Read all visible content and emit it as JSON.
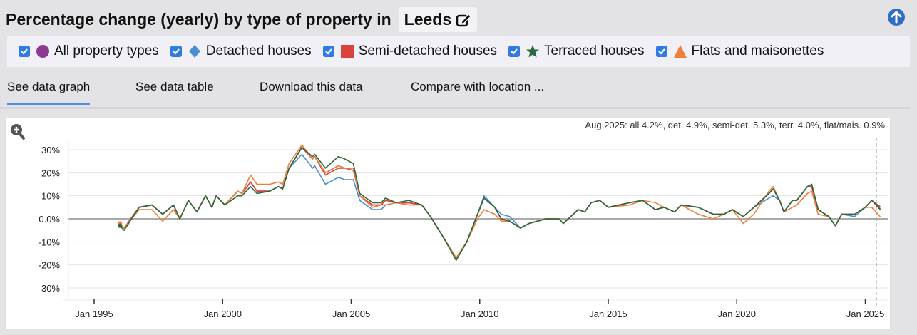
{
  "header": {
    "title": "Percentage change (yearly) by type of property in",
    "location": "Leeds",
    "edit_icon": "edit-icon",
    "scroll_top_icon": "arrow-up-circle-icon"
  },
  "legend": [
    {
      "label": "All property types",
      "color": "#8b3a8f",
      "marker": "circle",
      "checked": true
    },
    {
      "label": "Detached houses",
      "color": "#4a8fcf",
      "marker": "diamond",
      "checked": true
    },
    {
      "label": "Semi-detached houses",
      "color": "#d9433b",
      "marker": "square",
      "checked": true
    },
    {
      "label": "Terraced houses",
      "color": "#2c6a3c",
      "marker": "star",
      "checked": true
    },
    {
      "label": "Flats and maisonettes",
      "color": "#ef7f3d",
      "marker": "triangle",
      "checked": true
    }
  ],
  "tabs": [
    {
      "label": "See data graph",
      "active": true
    },
    {
      "label": "See data table"
    },
    {
      "label": "Download this data"
    },
    {
      "label": "Compare with location ..."
    }
  ],
  "chart_data": {
    "type": "line",
    "annotation": "Aug 2025: all 4.2%, det. 4.9%, semi-det. 5.3%, terr. 4.0%, flat/mais. 0.9%",
    "zoom_icon": "zoom-in-icon",
    "ylim": [
      -35,
      35
    ],
    "yticks": [
      "30%",
      "20%",
      "10%",
      "0.0%",
      "-10%",
      "-20%",
      "-30%"
    ],
    "xticks": [
      "Jan 1995",
      "Jan 2000",
      "Jan 2005",
      "Jan 2010",
      "Jan 2015",
      "Jan 2020",
      "Jan 2025"
    ],
    "grid": true,
    "x": [
      "1996-01",
      "1996-03",
      "1996-10",
      "1997-04",
      "1997-09",
      "1998-02",
      "1998-05",
      "1998-09",
      "1999-01",
      "1999-05",
      "1999-08",
      "1999-10",
      "2000-02",
      "2000-08",
      "2000-10",
      "2001-02",
      "2001-05",
      "2001-11",
      "2002-03",
      "2002-05",
      "2002-08",
      "2003-02",
      "2003-07",
      "2003-08",
      "2004-01",
      "2004-07",
      "2004-10",
      "2005-02",
      "2005-05",
      "2005-11",
      "2006-03",
      "2006-05",
      "2006-10",
      "2007-04",
      "2007-10",
      "2008-02",
      "2008-08",
      "2009-02",
      "2009-07",
      "2009-12",
      "2010-03",
      "2010-08",
      "2010-11",
      "2011-03",
      "2011-08",
      "2011-12",
      "2012-04",
      "2012-08",
      "2013-02",
      "2013-04",
      "2013-11",
      "2014-02",
      "2014-05",
      "2014-09",
      "2015-01",
      "2015-11",
      "2016-05",
      "2016-11",
      "2017-03",
      "2017-08",
      "2017-11",
      "2018-07",
      "2019-02",
      "2019-07",
      "2019-11",
      "2020-04",
      "2020-09",
      "2021-04",
      "2021-06",
      "2021-09",
      "2021-11",
      "2022-03",
      "2022-05",
      "2022-10",
      "2022-12",
      "2023-03",
      "2023-08",
      "2023-11",
      "2024-02",
      "2024-08",
      "2025-01",
      "2025-04",
      "2025-08"
    ],
    "series": [
      {
        "name": "All property types",
        "values": [
          -2,
          -4,
          5,
          6,
          2,
          6,
          0,
          8,
          3,
          10,
          5,
          10,
          6,
          12,
          11,
          16,
          12,
          12,
          14,
          13,
          22,
          31,
          26,
          27,
          20,
          23,
          22,
          22,
          10,
          6,
          6,
          8,
          7,
          7,
          6,
          1,
          -8,
          -17,
          -10,
          2,
          9,
          5,
          0,
          -1,
          -4,
          -2,
          -1,
          0,
          0,
          -2,
          4,
          3,
          7,
          8,
          5,
          7,
          8,
          4,
          5,
          3,
          6,
          5,
          2,
          2,
          4,
          1,
          5,
          11,
          13,
          8,
          3,
          8,
          8,
          14,
          14,
          4,
          1,
          -3,
          2,
          2,
          5,
          8,
          4.2
        ]
      },
      {
        "name": "Detached houses",
        "values": [
          -2,
          -4,
          5,
          6,
          2,
          6,
          0,
          8,
          3,
          10,
          5,
          10,
          6,
          12,
          11,
          16,
          12,
          12,
          14,
          13,
          22,
          28,
          22,
          23,
          15,
          18,
          17,
          17,
          8,
          4,
          4,
          6,
          7,
          7,
          6,
          1,
          -8,
          -17,
          -10,
          2,
          10,
          5,
          2,
          1,
          -4,
          -2,
          -1,
          0,
          0,
          -2,
          4,
          3,
          7,
          8,
          5,
          7,
          8,
          4,
          5,
          3,
          6,
          5,
          2,
          2,
          4,
          1,
          5,
          9,
          10,
          8,
          3,
          8,
          8,
          14,
          14,
          4,
          1,
          -3,
          2,
          1,
          5,
          8,
          4.9
        ]
      },
      {
        "name": "Semi-detached houses",
        "values": [
          -2,
          -4,
          5,
          6,
          2,
          6,
          0,
          8,
          3,
          10,
          5,
          10,
          6,
          12,
          11,
          16,
          12,
          12,
          14,
          13,
          22,
          31,
          26,
          27,
          19,
          22,
          22,
          21,
          10,
          6,
          6,
          8,
          7,
          7,
          6,
          1,
          -8,
          -17,
          -10,
          2,
          9,
          5,
          0,
          -1,
          -4,
          -2,
          -1,
          0,
          0,
          -2,
          4,
          3,
          7,
          8,
          5,
          7,
          8,
          4,
          5,
          3,
          6,
          5,
          2,
          2,
          4,
          1,
          5,
          11,
          13,
          8,
          3,
          8,
          8,
          14,
          14,
          4,
          1,
          -3,
          2,
          2,
          5,
          8,
          5.3
        ]
      },
      {
        "name": "Terraced houses",
        "values": [
          -3,
          -5,
          5,
          6,
          2,
          6,
          0,
          8,
          3,
          10,
          5,
          10,
          6,
          10,
          10,
          14,
          11,
          12,
          14,
          13,
          22,
          31,
          27,
          28,
          22,
          27,
          26,
          24,
          11,
          7,
          7,
          9,
          7,
          8,
          6,
          1,
          -8,
          -18,
          -10,
          2,
          9,
          5,
          0,
          -1,
          -4,
          -2,
          -1,
          0,
          0,
          -2,
          4,
          3,
          7,
          8,
          5,
          7,
          8,
          4,
          5,
          3,
          6,
          5,
          2,
          2,
          4,
          1,
          5,
          11,
          13,
          8,
          3,
          8,
          8,
          14,
          15,
          4,
          1,
          -3,
          2,
          2,
          5,
          8,
          4.0
        ]
      },
      {
        "name": "Flats and maisonettes",
        "values": [
          -2,
          -4,
          4,
          4,
          -1,
          4,
          0,
          8,
          3,
          10,
          5,
          10,
          6,
          12,
          11,
          19,
          15,
          15,
          16,
          15,
          24,
          32,
          26,
          27,
          20,
          23,
          22,
          22,
          10,
          5,
          6,
          6,
          7,
          6,
          6,
          1,
          -8,
          -17,
          -10,
          0,
          4,
          2,
          -1,
          -1,
          -4,
          -2,
          -1,
          0,
          0,
          -2,
          4,
          3,
          7,
          8,
          5,
          6,
          8,
          7,
          5,
          3,
          6,
          2,
          0,
          2,
          4,
          -2,
          2,
          12,
          14,
          8,
          3,
          5,
          6,
          11,
          12,
          2,
          1,
          -3,
          2,
          2,
          5,
          5,
          0.9
        ]
      }
    ]
  }
}
